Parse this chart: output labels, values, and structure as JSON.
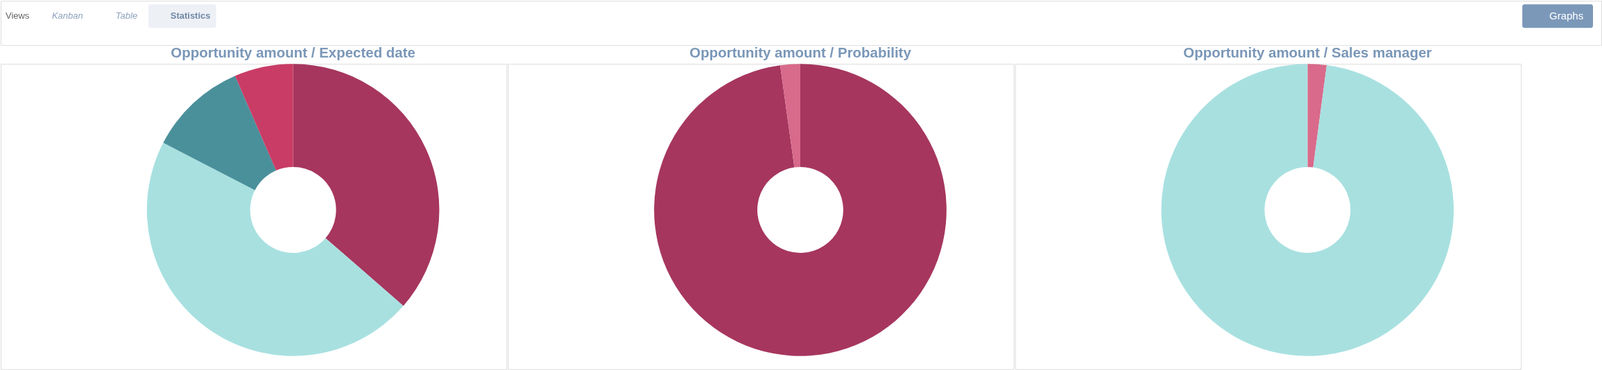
{
  "chart_data": [
    {
      "type": "other",
      "annotations": [
        "Views",
        "Kanban",
        "Table",
        "Statistics",
        "Graphs"
      ]
    },
    {
      "type": "donut",
      "title": "Opportunity amount / Expected date",
      "categories": [
        null,
        null,
        null,
        null
      ],
      "values": [
        36.4,
        46.2,
        10.9,
        6.5
      ],
      "colors": [
        "#a6365e",
        "#a8e0e0",
        "#4a909b",
        "#c93c66"
      ]
    },
    {
      "type": "donut",
      "title": "Opportunity amount / Probability",
      "categories": [
        null,
        null
      ],
      "values": [
        97.8,
        2.2
      ],
      "colors": [
        "#a6365e",
        "#d86a8b"
      ]
    },
    {
      "type": "donut",
      "title": "Opportunity amount / Sales manager",
      "categories": [
        null,
        null
      ],
      "values": [
        2.1,
        97.9
      ],
      "colors": [
        "#d96a8b",
        "#a8e0e0"
      ]
    }
  ]
}
